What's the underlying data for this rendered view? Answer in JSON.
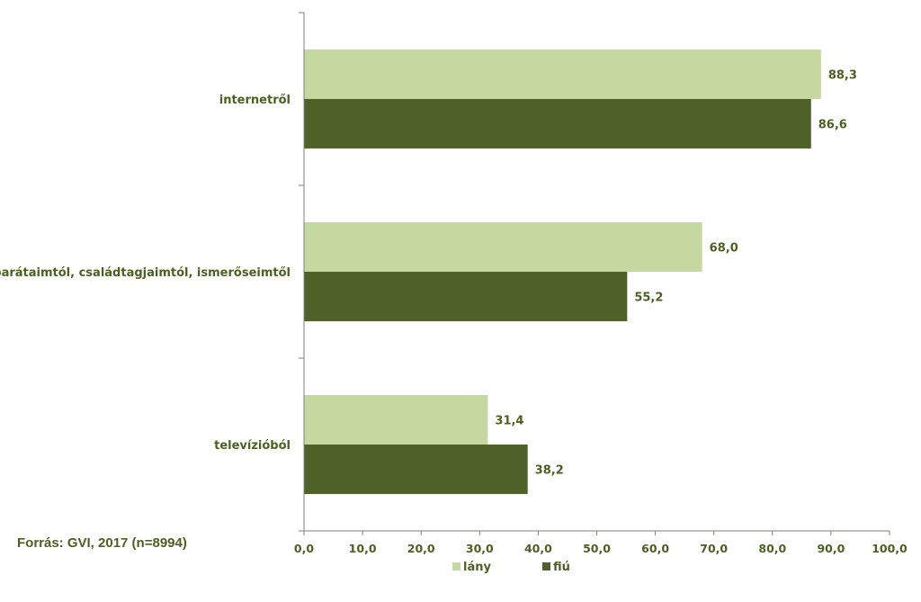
{
  "source_note": "Forrás: GVI, 2017 (n=8994)",
  "colors": {
    "lany": "#c4d8a0",
    "fiu": "#4e6128",
    "text": "#4d5f22",
    "axis": "#7f7f7f"
  },
  "chart_data": {
    "type": "bar",
    "orientation": "horizontal",
    "categories": [
      "internetről",
      "barátaimtól, családtagjaimtól, ismerőseimtől",
      "televízióból"
    ],
    "series": [
      {
        "name": "lány",
        "values": [
          88.3,
          68.0,
          31.4
        ],
        "value_labels": [
          "88,3",
          "68,0",
          "31,4"
        ]
      },
      {
        "name": "fiú",
        "values": [
          86.6,
          55.2,
          38.2
        ],
        "value_labels": [
          "86,6",
          "55,2",
          "38,2"
        ]
      }
    ],
    "xlim": [
      0,
      100
    ],
    "x_ticks": [
      0,
      10,
      20,
      30,
      40,
      50,
      60,
      70,
      80,
      90,
      100
    ],
    "x_tick_labels": [
      "0,0",
      "10,0",
      "20,0",
      "30,0",
      "40,0",
      "50,0",
      "60,0",
      "70,0",
      "80,0",
      "90,0",
      "100,0"
    ],
    "grid": false,
    "legend": "bottom-center"
  }
}
